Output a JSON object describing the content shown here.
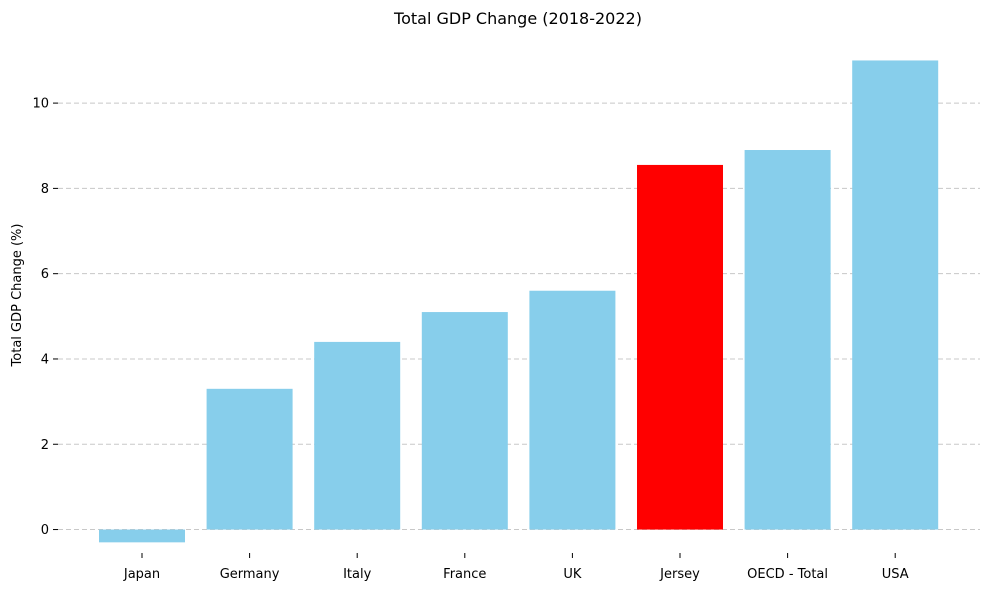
{
  "chart_data": {
    "type": "bar",
    "title": "Total GDP Change (2018-2022)",
    "xlabel": "",
    "ylabel": "Total GDP Change (%)",
    "categories": [
      "Japan",
      "Germany",
      "Italy",
      "France",
      "UK",
      "Jersey",
      "OECD - Total",
      "USA"
    ],
    "values": [
      -0.3,
      3.3,
      4.4,
      5.1,
      5.6,
      8.55,
      8.9,
      11.0
    ],
    "ylim": [
      -0.55,
      11.55
    ],
    "yticks": [
      0,
      2,
      4,
      6,
      8,
      10
    ],
    "grid": "y-axis dashed",
    "legend": "none",
    "colors": {
      "default_bar": "#87CEEB",
      "highlight_bar": "#FF0000",
      "highlight_category": "Jersey",
      "grid": "#c8c8c8"
    }
  }
}
